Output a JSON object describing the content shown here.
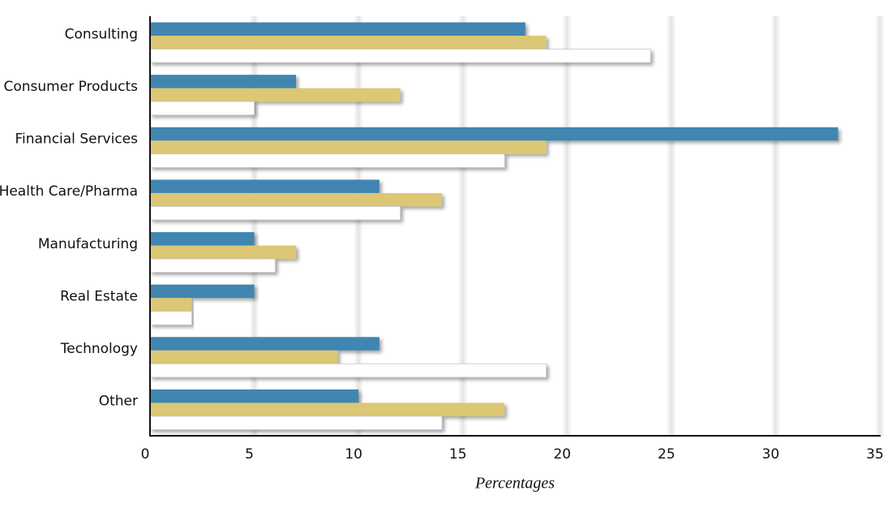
{
  "chart_data": {
    "type": "bar",
    "orientation": "horizontal",
    "x_label": "Percentages",
    "categories": [
      "Consulting",
      "Consumer Products",
      "Financial Services",
      "Health Care/Pharma",
      "Manufacturing",
      "Real Estate",
      "Technology",
      "Other"
    ],
    "series": [
      {
        "color": "#3f86b0",
        "values": [
          18,
          7,
          33,
          11,
          5,
          5,
          11,
          10
        ]
      },
      {
        "color": "#dcc774",
        "values": [
          19,
          12,
          19,
          14,
          7,
          2,
          9,
          17
        ]
      },
      {
        "color": "#ffffff",
        "values": [
          24,
          5,
          17,
          12,
          6,
          2,
          19,
          14
        ]
      }
    ],
    "xlim": [
      0,
      35
    ],
    "xticks": [
      0,
      5,
      10,
      15,
      20,
      25,
      30,
      35
    ],
    "grid": true
  }
}
